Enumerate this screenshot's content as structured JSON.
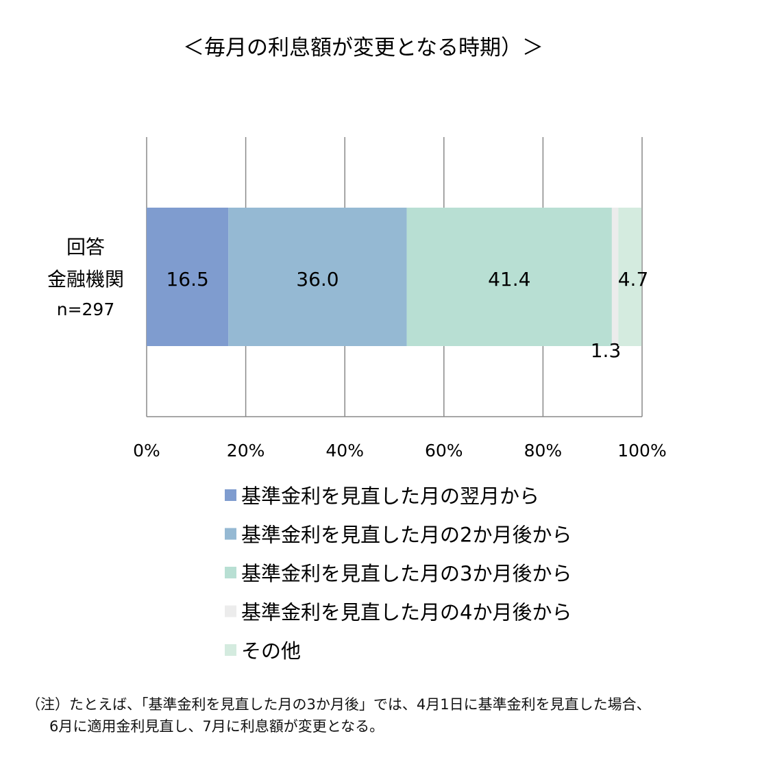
{
  "chart_data": {
    "type": "bar",
    "orientation": "horizontal",
    "stacked": true,
    "title": "＜毎月の利息額が変更となる時期）＞",
    "category_label_lines": [
      "回答",
      "金融機関",
      "n=297"
    ],
    "xlim": [
      0,
      100
    ],
    "x_ticks": [
      "0%",
      "20%",
      "40%",
      "60%",
      "80%",
      "100%"
    ],
    "grid": "vertical",
    "legend_placement": "bottom",
    "series": [
      {
        "name": "基準金利を見直した月の翌月から",
        "value": 16.5,
        "label": "16.5",
        "color": "#7f9ccf"
      },
      {
        "name": "基準金利を見直した月の2か月後から",
        "value": 36.0,
        "label": "36.0",
        "color": "#95b9d3"
      },
      {
        "name": "基準金利を見直した月の3か月後から",
        "value": 41.4,
        "label": "41.4",
        "color": "#b8dfd3"
      },
      {
        "name": "基準金利を見直した月の4か月後から",
        "value": 1.3,
        "label": "1.3",
        "color": "#ececec"
      },
      {
        "name": "その他",
        "value": 4.7,
        "label": "4.7",
        "color": "#d4ebdf"
      }
    ]
  },
  "notes": {
    "line1": "（注）たとえば、「基準金利を見直した月の3か月後」では、4月1日に基準金利を見直した場合、",
    "line2": "6月に適用金利見直し、7月に利息額が変更となる。"
  }
}
